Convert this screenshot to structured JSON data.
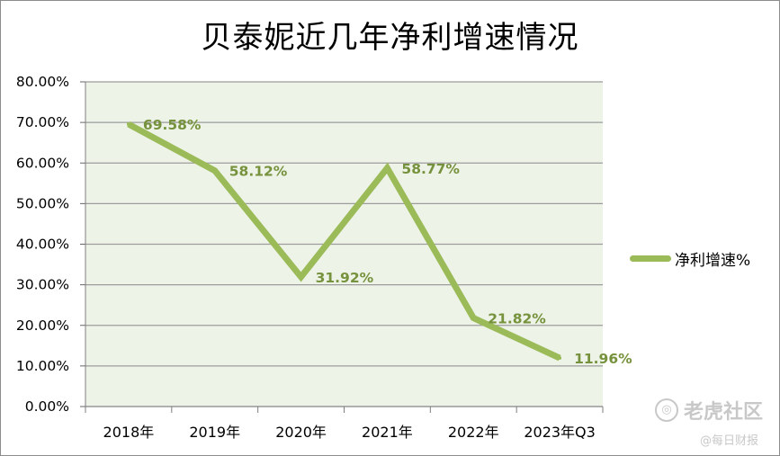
{
  "chart_data": {
    "type": "line",
    "title": "贝泰妮近几年净利增速情况",
    "categories": [
      "2018年",
      "2019年",
      "2020年",
      "2021年",
      "2022年",
      "2023年Q3"
    ],
    "series": [
      {
        "name": "净利增速%",
        "values": [
          69.58,
          58.12,
          31.92,
          58.77,
          21.82,
          11.96
        ],
        "data_labels": [
          "69.58%",
          "58.12%",
          "31.92%",
          "58.77%",
          "21.82%",
          "11.96%"
        ]
      }
    ],
    "y_ticks": [
      "0.00%",
      "10.00%",
      "20.00%",
      "30.00%",
      "40.00%",
      "50.00%",
      "60.00%",
      "70.00%",
      "80.00%"
    ],
    "ylim": [
      0,
      80
    ],
    "grid": true,
    "legend_position": "right",
    "colors": {
      "line": "#9bbb59",
      "label": "#76923c",
      "plot_bg": "#eef3e8",
      "grid": "#9c9c9c"
    }
  },
  "watermark": {
    "icon": "tiger-logo-icon",
    "text": "老虎社区"
  },
  "source_tag": "@每日财报"
}
